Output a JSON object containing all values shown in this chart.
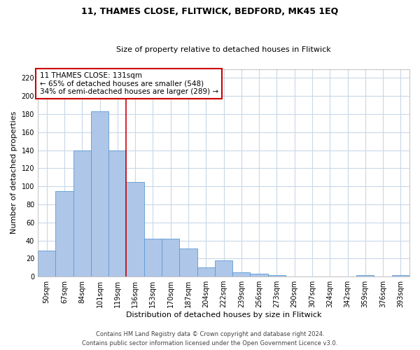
{
  "title1": "11, THAMES CLOSE, FLITWICK, BEDFORD, MK45 1EQ",
  "title2": "Size of property relative to detached houses in Flitwick",
  "xlabel": "Distribution of detached houses by size in Flitwick",
  "ylabel": "Number of detached properties",
  "bar_labels": [
    "50sqm",
    "67sqm",
    "84sqm",
    "101sqm",
    "119sqm",
    "136sqm",
    "153sqm",
    "170sqm",
    "187sqm",
    "204sqm",
    "222sqm",
    "239sqm",
    "256sqm",
    "273sqm",
    "290sqm",
    "307sqm",
    "324sqm",
    "342sqm",
    "359sqm",
    "376sqm",
    "393sqm"
  ],
  "bar_values": [
    29,
    95,
    140,
    183,
    140,
    105,
    42,
    42,
    31,
    10,
    18,
    5,
    3,
    2,
    0,
    0,
    0,
    0,
    2,
    0,
    2
  ],
  "bar_color": "#aec6e8",
  "bar_edge_color": "#5b9bd5",
  "annotation_text_line1": "11 THAMES CLOSE: 131sqm",
  "annotation_text_line2": "← 65% of detached houses are smaller (548)",
  "annotation_text_line3": "34% of semi-detached houses are larger (289) →",
  "annotation_box_color": "#ffffff",
  "annotation_box_edge_color": "#cc0000",
  "vline_color": "#cc0000",
  "vline_index": 4.5,
  "ylim": [
    0,
    230
  ],
  "yticks": [
    0,
    20,
    40,
    60,
    80,
    100,
    120,
    140,
    160,
    180,
    200,
    220
  ],
  "footer1": "Contains HM Land Registry data © Crown copyright and database right 2024.",
  "footer2": "Contains public sector information licensed under the Open Government Licence v3.0.",
  "background_color": "#ffffff",
  "grid_color": "#c8d8e8",
  "title1_fontsize": 9,
  "title2_fontsize": 8,
  "ylabel_fontsize": 8,
  "xlabel_fontsize": 8,
  "tick_fontsize": 7,
  "footer_fontsize": 6,
  "ann_fontsize": 7.5
}
